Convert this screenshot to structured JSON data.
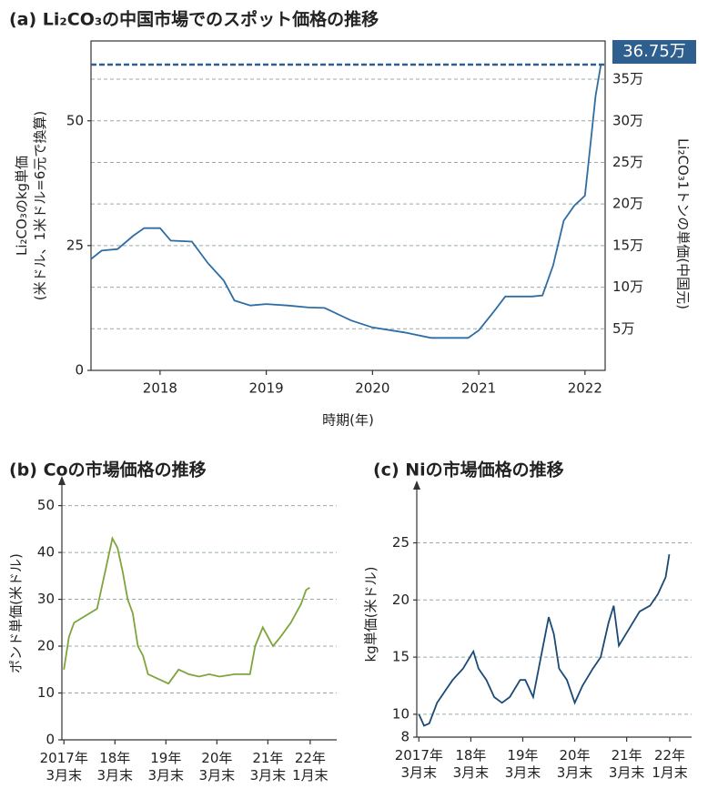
{
  "chart_data": [
    {
      "type": "line",
      "title": "(a) Li₂CO₃の中国市場でのスポット価格の推移",
      "x_label": "時期(年)",
      "y_label": "Li₂CO₃のkg単価\n(米ドル、1米ドル=6元で換算)",
      "y2_label": "Li₂CO₃1トンの単価(中国元)",
      "x": [
        2017.35,
        2017.45,
        2017.6,
        2017.75,
        2017.85,
        2018.0,
        2018.1,
        2018.3,
        2018.45,
        2018.6,
        2018.7,
        2018.85,
        2019.0,
        2019.2,
        2019.4,
        2019.55,
        2019.8,
        2020.0,
        2020.3,
        2020.55,
        2020.9,
        2021.0,
        2021.15,
        2021.25,
        2021.5,
        2021.6,
        2021.7,
        2021.8,
        2021.9,
        2022.0,
        2022.05,
        2022.1,
        2022.15
      ],
      "values": [
        22.3,
        24,
        24.3,
        27,
        28.5,
        28.5,
        26,
        25.8,
        21.5,
        18,
        14,
        13,
        13.3,
        13,
        12.6,
        12.5,
        10,
        8.6,
        7.6,
        6.5,
        6.5,
        8,
        12,
        14.8,
        14.8,
        15,
        21,
        30,
        33,
        35,
        45,
        55,
        61.25
      ],
      "color": "#2e6da4",
      "xlim": [
        2017.35,
        2022.19
      ],
      "xticks": [
        2018,
        2019,
        2020,
        2021,
        2022
      ],
      "ylim": [
        0,
        66
      ],
      "yticks": [
        0,
        25,
        50
      ],
      "y2lim": [
        0,
        396000
      ],
      "y2ticks": [
        {
          "value": 50000,
          "label": "5万"
        },
        {
          "value": 100000,
          "label": "10万"
        },
        {
          "value": 150000,
          "label": "15万"
        },
        {
          "value": 200000,
          "label": "20万"
        },
        {
          "value": 250000,
          "label": "25万"
        },
        {
          "value": 300000,
          "label": "30万"
        },
        {
          "value": 350000,
          "label": "35万"
        }
      ],
      "grid": "y2",
      "annotation": {
        "value": 367500,
        "label": "36.75万",
        "axis": "y2"
      }
    },
    {
      "type": "line",
      "title": "(b) Coの市場価格の推移",
      "y_label": "ポンド単価(米ドル)",
      "x": [
        2017.25,
        2017.35,
        2017.45,
        2017.6,
        2017.75,
        2017.9,
        2018.0,
        2018.1,
        2018.2,
        2018.3,
        2018.4,
        2018.5,
        2018.6,
        2018.7,
        2018.8,
        2018.9,
        2019.1,
        2019.3,
        2019.5,
        2019.7,
        2019.9,
        2020.1,
        2020.3,
        2020.6,
        2020.9,
        2021.0,
        2021.15,
        2021.35,
        2021.5,
        2021.7,
        2021.9,
        2022.0,
        2022.07
      ],
      "values": [
        15,
        22,
        25,
        26,
        27,
        28,
        33,
        38,
        43,
        41,
        36,
        30,
        27,
        20,
        18,
        14,
        13,
        12,
        15,
        14,
        13.5,
        14,
        13.5,
        14,
        14,
        20,
        24,
        20,
        22,
        25,
        29,
        32,
        32.5
      ],
      "color": "#7ea53a",
      "xlim": [
        2017.21,
        2022.6
      ],
      "xticks": [
        {
          "value": 2017.25,
          "label": "2017年\n3月末"
        },
        {
          "value": 2018.25,
          "label": "18年\n3月末"
        },
        {
          "value": 2019.25,
          "label": "19年\n3月末"
        },
        {
          "value": 2020.25,
          "label": "20年\n3月末"
        },
        {
          "value": 2021.25,
          "label": "21年\n3月末"
        },
        {
          "value": 2022.08,
          "label": "22年\n1月末"
        }
      ],
      "ylim": [
        0,
        54
      ],
      "yticks": [
        0,
        10,
        20,
        30,
        40,
        50
      ],
      "grid": "y"
    },
    {
      "type": "line",
      "title": "(c) Niの市場価格の推移",
      "y_label": "kg単価(米ドル)",
      "x": [
        2017.25,
        2017.35,
        2017.45,
        2017.6,
        2017.75,
        2017.9,
        2018.1,
        2018.3,
        2018.4,
        2018.55,
        2018.7,
        2018.85,
        2019.0,
        2019.2,
        2019.3,
        2019.45,
        2019.6,
        2019.75,
        2019.85,
        2019.95,
        2020.1,
        2020.25,
        2020.4,
        2020.6,
        2020.75,
        2020.9,
        2021.0,
        2021.1,
        2021.3,
        2021.5,
        2021.7,
        2021.85,
        2022.0,
        2022.07
      ],
      "values": [
        10,
        9,
        9.2,
        11,
        12,
        13,
        14,
        15.5,
        14,
        13,
        11.5,
        11,
        11.5,
        13,
        13,
        11.5,
        15,
        18.5,
        17,
        14,
        13,
        11,
        12.5,
        14,
        15,
        18,
        19.5,
        16,
        17.5,
        19,
        19.5,
        20.5,
        22,
        24
      ],
      "color": "#1a4a75",
      "xlim": [
        2017.21,
        2022.5
      ],
      "xticks": [
        {
          "value": 2017.25,
          "label": "2017年\n3月末"
        },
        {
          "value": 2018.25,
          "label": "18年\n3月末"
        },
        {
          "value": 2019.25,
          "label": "19年\n3月末"
        },
        {
          "value": 2020.25,
          "label": "20年\n3月末"
        },
        {
          "value": 2021.25,
          "label": "21年\n3月末"
        },
        {
          "value": 2022.08,
          "label": "22年\n1月末"
        }
      ],
      "ylim": [
        8,
        29.5
      ],
      "yticks": [
        8,
        10,
        15,
        20,
        25
      ],
      "grid": "y"
    }
  ]
}
